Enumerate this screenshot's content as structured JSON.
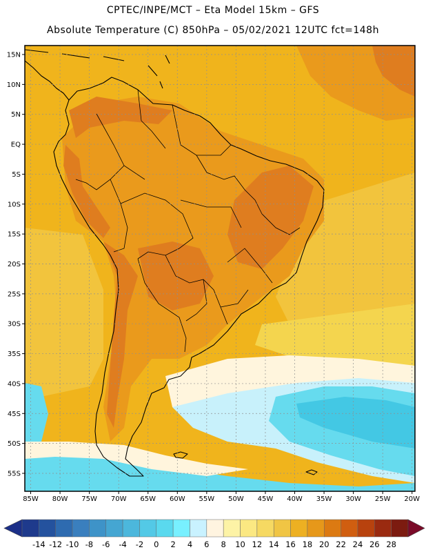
{
  "header": {
    "line1": "CPTEC/INPE/MCT –  Eta Model 15km – GFS",
    "line2": "Absolute Temperature (C) 850hPa – 05/02/2021 12UTC fct=148h"
  },
  "map": {
    "lat_labels": [
      "15N",
      "10N",
      "5N",
      "EQ",
      "5S",
      "10S",
      "15S",
      "20S",
      "25S",
      "30S",
      "35S",
      "40S",
      "45S",
      "50S",
      "55S"
    ],
    "lat_values": [
      15,
      10,
      5,
      0,
      -5,
      -10,
      -15,
      -20,
      -25,
      -30,
      -35,
      -40,
      -45,
      -50,
      -55
    ],
    "lon_labels": [
      "85W",
      "80W",
      "75W",
      "70W",
      "65W",
      "60W",
      "55W",
      "50W",
      "45W",
      "40W",
      "35W",
      "30W",
      "25W",
      "20W"
    ],
    "lon_values": [
      -85,
      -80,
      -75,
      -70,
      -65,
      -60,
      -55,
      -50,
      -45,
      -40,
      -35,
      -30,
      -25,
      -20
    ],
    "extent": {
      "lon_min": -86,
      "lon_max": -19.5,
      "lat_min": -58,
      "lat_max": 16.5
    }
  },
  "colorbar": {
    "labels": [
      "-14",
      "-12",
      "-10",
      "-8",
      "-6",
      "-4",
      "-2",
      "0",
      "2",
      "4",
      "6",
      "8",
      "10",
      "12",
      "14",
      "16",
      "18",
      "20",
      "22",
      "24",
      "26",
      "28"
    ],
    "colors": [
      "#1e3a8c",
      "#24529e",
      "#2e6bb0",
      "#3a7fbe",
      "#3e93c8",
      "#45a6d2",
      "#4cb7dc",
      "#53c9e6",
      "#5ad9ee",
      "#78f0ff",
      "#c9f2ff",
      "#fff4e0",
      "#fdf3a6",
      "#fbe882",
      "#f6d962",
      "#f0c544",
      "#edb022",
      "#e6981a",
      "#dc7a12",
      "#d05e10",
      "#b8420e",
      "#9a2a10",
      "#7c1b10"
    ],
    "low_arrow_color": "#1b2f88",
    "high_arrow_color": "#7a0a28"
  },
  "field_colors": {
    "hot": "#df7d1f",
    "warm": "#ea9a1c",
    "mild": "#f0b41c",
    "tepid": "#f2c43d",
    "cool": "#f4d54e",
    "cream": "#fff5dd",
    "cold": "#c8f1fb",
    "colder": "#66dbee",
    "coldest": "#43c8e4"
  }
}
